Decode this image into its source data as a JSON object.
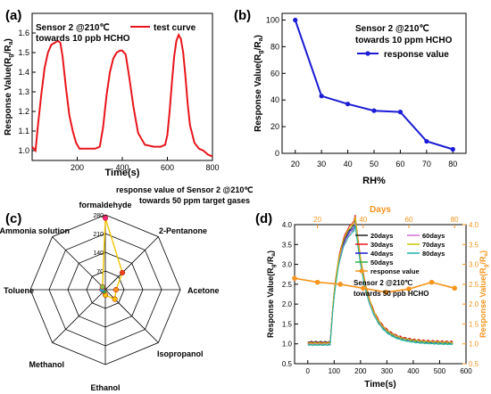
{
  "chart_data": [
    {
      "panel_label": "(a)",
      "type": "line",
      "annotation_lines": [
        "Sensor 2 @210℃",
        "towards 10 ppb HCHO"
      ],
      "legend": "test curve",
      "xlabel": "Time(s)",
      "ylabel": "Response Value(Rg/Ra)",
      "xlim": [
        0,
        800
      ],
      "ylim": [
        0.95,
        1.7
      ],
      "xticks": [
        "200",
        "400",
        "600",
        "800"
      ],
      "yticks": [
        "1.0",
        "1.1",
        "1.2",
        "1.3",
        "1.4",
        "1.5",
        "1.6"
      ],
      "series": [
        {
          "name": "test curve",
          "color": "#e8151b",
          "x": [
            0,
            15,
            25,
            40,
            55,
            70,
            85,
            100,
            115,
            125,
            135,
            150,
            165,
            180,
            195,
            210,
            230,
            250,
            280,
            300,
            315,
            330,
            345,
            360,
            375,
            390,
            400,
            415,
            430,
            450,
            470,
            500,
            540,
            570,
            590,
            600,
            610,
            620,
            630,
            640,
            650,
            660,
            670,
            680,
            690,
            700,
            720,
            740,
            760,
            780,
            800
          ],
          "y": [
            1.02,
            1.0,
            1.12,
            1.28,
            1.42,
            1.5,
            1.54,
            1.55,
            1.56,
            1.55,
            1.48,
            1.32,
            1.18,
            1.1,
            1.04,
            1.01,
            1.01,
            1.01,
            1.01,
            1.02,
            1.12,
            1.28,
            1.4,
            1.47,
            1.5,
            1.51,
            1.51,
            1.49,
            1.38,
            1.22,
            1.09,
            1.03,
            1.02,
            1.02,
            1.03,
            1.08,
            1.2,
            1.35,
            1.48,
            1.56,
            1.59,
            1.57,
            1.5,
            1.38,
            1.24,
            1.13,
            1.04,
            1.01,
            1.0,
            0.98,
            0.97
          ]
        }
      ]
    },
    {
      "panel_label": "(b)",
      "type": "line",
      "annotation_lines": [
        "Sensor 2 @210℃",
        "towards 10 ppm HCHO"
      ],
      "legend": "response value",
      "xlabel": "RH%",
      "ylabel": "Response Value(Rg/Ra)",
      "xlim": [
        15,
        85
      ],
      "ylim": [
        0,
        105
      ],
      "xticks": [
        "20",
        "30",
        "40",
        "50",
        "60",
        "70",
        "80"
      ],
      "yticks": [
        "0",
        "20",
        "40",
        "60",
        "80",
        "100"
      ],
      "series": [
        {
          "name": "response value",
          "color": "#1b1bd6",
          "x": [
            20,
            30,
            40,
            50,
            60,
            70,
            80
          ],
          "y": [
            100,
            43,
            37,
            32,
            31,
            9,
            3
          ]
        }
      ]
    },
    {
      "panel_label": "(c)",
      "type": "radar",
      "title_lines": [
        "response value of Sensor 2 @210℃",
        "towards 50 ppm target gases"
      ],
      "axes": [
        "formaldehyde",
        "2-Pentanone",
        "Acetone",
        "Isopropanol",
        "Ethanol",
        "Methanol",
        "Toluene",
        "Ammonia solution"
      ],
      "rlim": [
        0,
        280
      ],
      "rticks": [
        "0",
        "70",
        "140",
        "210",
        "280"
      ],
      "values": [
        268,
        90,
        40,
        50,
        20,
        8,
        12,
        15
      ],
      "colors": [
        "#ee2a7b",
        "#e8431b",
        "#f7941d",
        "#f2c500",
        "#f2c500",
        "#2eb34a",
        "#29a8e0",
        "#8bc34a"
      ]
    },
    {
      "panel_label": "(d)",
      "type": "line",
      "annotation_lines": [
        "Sensor 2 @210℃",
        "towards 50 ppb HCHO"
      ],
      "top_xlabel": "Days",
      "top_xlim": [
        10,
        85
      ],
      "top_xticks": [
        "20",
        "40",
        "60",
        "80"
      ],
      "xlabel": "Time(s)",
      "ylabel": "Response Value(Rg/Ra)",
      "y2label": "Response Value(Rg/Ra)",
      "xlim": [
        -50,
        600
      ],
      "ylim": [
        0.5,
        4.0
      ],
      "xticks": [
        "0",
        "100",
        "200",
        "300",
        "400",
        "500",
        "600"
      ],
      "yticks": [
        "0.5",
        "1.0",
        "1.5",
        "2.0",
        "2.5",
        "3.0",
        "3.5",
        "4.0"
      ],
      "series": [
        {
          "name": "20days",
          "color": "#222222",
          "peak": 4.0,
          "base": 1.05,
          "tail": 1.0
        },
        {
          "name": "30days",
          "color": "#e8151b",
          "peak": 4.1,
          "base": 1.03,
          "tail": 1.02
        },
        {
          "name": "40days",
          "color": "#1b1bd6",
          "peak": 3.95,
          "base": 1.0,
          "tail": 0.98
        },
        {
          "name": "50days",
          "color": "#2eb34a",
          "peak": 3.9,
          "base": 0.98,
          "tail": 0.96
        },
        {
          "name": "60days",
          "color": "#d06fd0",
          "peak": 3.9,
          "base": 1.0,
          "tail": 1.0
        },
        {
          "name": "70days",
          "color": "#c8c800",
          "peak": 4.05,
          "base": 1.02,
          "tail": 1.0
        },
        {
          "name": "80days",
          "color": "#20b2aa",
          "peak": 3.85,
          "base": 0.97,
          "tail": 0.95
        }
      ],
      "response_series": {
        "name": "response value",
        "color": "#f7941d",
        "days": [
          10,
          20,
          30,
          40,
          50,
          60,
          70,
          80
        ],
        "values": [
          2.65,
          2.55,
          2.5,
          2.4,
          2.3,
          2.38,
          2.55,
          2.4
        ]
      }
    }
  ]
}
